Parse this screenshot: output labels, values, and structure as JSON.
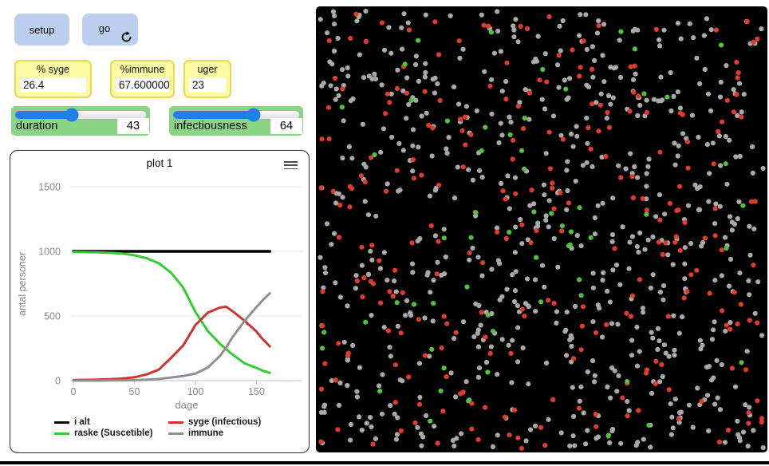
{
  "toolbar": {
    "setup_label": "setup",
    "go_label": "go"
  },
  "monitors": [
    {
      "label": "% syge",
      "value": "26.4"
    },
    {
      "label": "%immune",
      "value": "67.600000000000"
    },
    {
      "label": "uger",
      "value": "23"
    }
  ],
  "sliders": [
    {
      "label": "duration",
      "value": "43",
      "percent": 43
    },
    {
      "label": "infectiousness",
      "value": "64",
      "percent": 64
    }
  ],
  "chart_data": {
    "type": "line",
    "title": "plot 1",
    "xlabel": "dage",
    "ylabel": "antal personer",
    "xlim": [
      0,
      185
    ],
    "ylim": [
      0,
      1600
    ],
    "xticks": [
      0,
      50,
      100,
      150
    ],
    "yticks": [
      0,
      500,
      1000,
      1500
    ],
    "grid": true,
    "legend_position": "bottom",
    "x": [
      0,
      10,
      20,
      30,
      40,
      50,
      60,
      70,
      80,
      90,
      100,
      110,
      120,
      125,
      130,
      140,
      150,
      155,
      161
    ],
    "series": [
      {
        "name": "i alt",
        "color": "#000000",
        "width": 3.5,
        "values": [
          1000,
          1000,
          1000,
          1000,
          1000,
          1000,
          1000,
          1000,
          1000,
          1000,
          1000,
          1000,
          1000,
          1000,
          1000,
          1000,
          1000,
          1000,
          1000
        ]
      },
      {
        "name": "raske (Suscetible)",
        "color": "#33cc33",
        "width": 3,
        "values": [
          995,
          994,
          992,
          988,
          983,
          970,
          947,
          908,
          835,
          720,
          530,
          385,
          285,
          243,
          205,
          135,
          98,
          78,
          60
        ]
      },
      {
        "name": "syge (infectious)",
        "color": "#cf352c",
        "width": 3,
        "values": [
          5,
          6,
          8,
          11,
          16,
          26,
          48,
          85,
          175,
          273,
          430,
          525,
          565,
          572,
          540,
          465,
          380,
          322,
          264
        ]
      },
      {
        "name": "immune",
        "color": "#909090",
        "width": 3,
        "values": [
          0,
          0,
          0,
          1,
          2,
          4,
          7,
          13,
          24,
          36,
          55,
          100,
          190,
          255,
          330,
          460,
          570,
          620,
          676
        ]
      }
    ]
  },
  "view": {
    "population": 1000,
    "dot_radius": 3.1,
    "species": [
      {
        "name": "immune",
        "color": "#a9a9a9",
        "count": 676
      },
      {
        "name": "syge",
        "color": "#e13b2c",
        "count": 264
      },
      {
        "name": "raske",
        "color": "#53c13f",
        "count": 60
      }
    ]
  },
  "colors": {
    "button_bg": "#bdcfee",
    "monitor_bg": "#fcf9a4",
    "monitor_border": "#e8da4e",
    "slider_bg": "#8ad485",
    "slider_handle": "#2080e8",
    "view_bg": "#000000",
    "axis": "#bfcad9",
    "gridline": "#eaeaea",
    "tick_text": "#8a8a8a"
  }
}
